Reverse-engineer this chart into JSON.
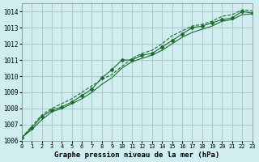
{
  "title": "Graphe pression niveau de la mer (hPa)",
  "bg_color": "#d0eef0",
  "grid_color": "#b0c8cc",
  "line_color": "#1a6b2a",
  "marker_color": "#1a6b2a",
  "xlim": [
    0,
    23
  ],
  "ylim": [
    1006,
    1014.5
  ],
  "yticks": [
    1006,
    1007,
    1008,
    1009,
    1010,
    1011,
    1012,
    1013,
    1014
  ],
  "xticks": [
    0,
    1,
    2,
    3,
    4,
    5,
    6,
    7,
    8,
    9,
    10,
    11,
    12,
    13,
    14,
    15,
    16,
    17,
    18,
    19,
    20,
    21,
    22,
    23
  ],
  "series": [
    {
      "x": [
        0,
        1,
        2,
        3,
        4,
        5,
        6,
        7,
        8,
        9,
        10,
        11,
        12,
        13,
        14,
        15,
        16,
        17,
        18,
        19,
        20,
        21,
        22,
        23
      ],
      "y": [
        1006.2,
        1006.8,
        1007.5,
        1007.9,
        1008.1,
        1008.4,
        1008.8,
        1009.2,
        1009.9,
        1010.4,
        1011.0,
        1011.0,
        1011.3,
        1011.4,
        1011.8,
        1012.2,
        1012.6,
        1013.0,
        1013.1,
        1013.3,
        1013.5,
        1013.6,
        1014.0,
        1013.9
      ],
      "marker": true,
      "linestyle": "-"
    },
    {
      "x": [
        0,
        1,
        2,
        3,
        4,
        5,
        6,
        7,
        8,
        9,
        10,
        11,
        12,
        13,
        14,
        15,
        16,
        17,
        18,
        19,
        20,
        21,
        22,
        23
      ],
      "y": [
        1006.2,
        1006.7,
        1007.3,
        1007.8,
        1008.0,
        1008.3,
        1008.6,
        1009.0,
        1009.5,
        1009.9,
        1010.5,
        1010.9,
        1011.1,
        1011.3,
        1011.6,
        1012.0,
        1012.4,
        1012.7,
        1012.9,
        1013.1,
        1013.4,
        1013.5,
        1013.8,
        1013.85
      ],
      "marker": false,
      "linestyle": "-"
    },
    {
      "x": [
        0,
        1,
        2,
        3,
        4,
        5,
        6,
        7,
        8,
        9,
        10,
        11,
        12,
        13,
        14,
        15,
        16,
        17,
        18,
        19,
        20,
        21,
        22,
        23
      ],
      "y": [
        1006.2,
        1006.9,
        1007.6,
        1008.0,
        1008.3,
        1008.6,
        1009.0,
        1009.4,
        1009.8,
        1010.1,
        1010.6,
        1011.1,
        1011.4,
        1011.6,
        1012.0,
        1012.5,
        1012.8,
        1013.1,
        1013.2,
        1013.4,
        1013.7,
        1013.8,
        1014.1,
        1014.05
      ],
      "marker": false,
      "linestyle": "--"
    }
  ]
}
